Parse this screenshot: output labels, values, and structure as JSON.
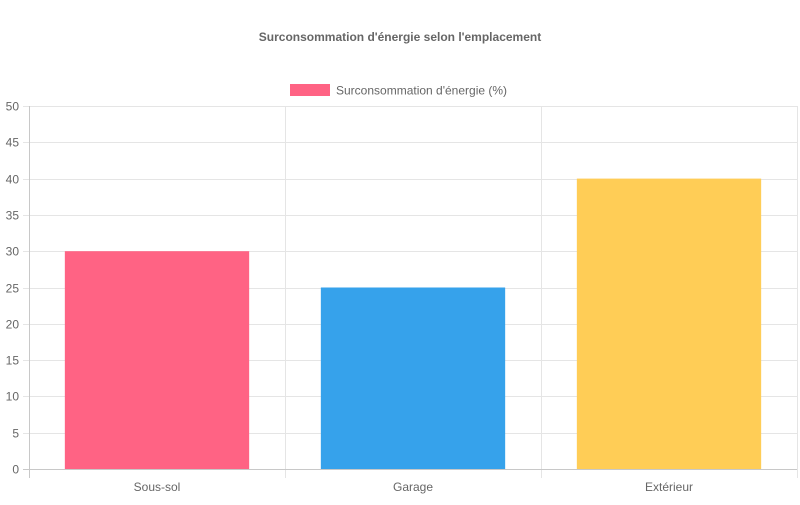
{
  "chart_data": {
    "type": "bar",
    "title": "Surconsommation d'énergie selon l'emplacement",
    "categories": [
      "Sous-sol",
      "Garage",
      "Extérieur"
    ],
    "series": [
      {
        "name": "Surconsommation d'énergie (%)",
        "values": [
          30,
          25,
          40
        ],
        "colors": [
          "#ff6384",
          "#36a2eb",
          "#ffcd56"
        ]
      }
    ],
    "legend_color": "#ff6384",
    "legend_position": "top",
    "ylim": [
      0,
      50
    ],
    "yticks": [
      0,
      5,
      10,
      15,
      20,
      25,
      30,
      35,
      40,
      45,
      50
    ],
    "grid": true,
    "colors": {
      "title_text": "#666666",
      "tick_text": "#666666",
      "grid": "#e5e5e5",
      "axis": "#c8c8c8"
    }
  }
}
